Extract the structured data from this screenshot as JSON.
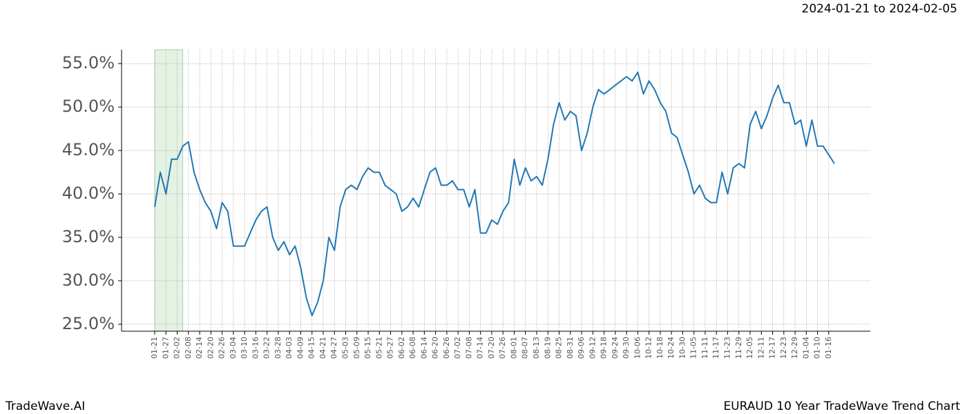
{
  "chart_data": {
    "type": "line",
    "title": "2024-01-21 to 2024-02-05",
    "footer_left": "TradeWave.AI",
    "footer_right": "EURAUD 10 Year TradeWave Trend Chart",
    "color": "#1f77b4",
    "grid": true,
    "shade": {
      "from": "01-21",
      "to": "02-05",
      "color": "#e4f2e4"
    },
    "x": [
      "01-21",
      "01-24",
      "01-27",
      "01-30",
      "02-02",
      "02-05",
      "02-08",
      "02-11",
      "02-14",
      "02-17",
      "02-20",
      "02-23",
      "02-26",
      "03-01",
      "03-04",
      "03-07",
      "03-10",
      "03-13",
      "03-16",
      "03-19",
      "03-22",
      "03-25",
      "03-28",
      "03-31",
      "04-03",
      "04-06",
      "04-09",
      "04-12",
      "04-15",
      "04-18",
      "04-21",
      "04-24",
      "04-27",
      "04-30",
      "05-03",
      "05-06",
      "05-09",
      "05-12",
      "05-15",
      "05-18",
      "05-21",
      "05-24",
      "05-27",
      "05-30",
      "06-02",
      "06-05",
      "06-08",
      "06-11",
      "06-14",
      "06-17",
      "06-20",
      "06-23",
      "06-26",
      "06-29",
      "07-02",
      "07-05",
      "07-08",
      "07-11",
      "07-14",
      "07-17",
      "07-20",
      "07-23",
      "07-26",
      "07-29",
      "08-01",
      "08-04",
      "08-07",
      "08-10",
      "08-13",
      "08-16",
      "08-19",
      "08-22",
      "08-25",
      "08-28",
      "08-31",
      "09-03",
      "09-06",
      "09-09",
      "09-12",
      "09-15",
      "09-18",
      "09-21",
      "09-24",
      "09-27",
      "09-30",
      "10-03",
      "10-06",
      "10-09",
      "10-12",
      "10-15",
      "10-18",
      "10-21",
      "10-24",
      "10-27",
      "10-30",
      "11-02",
      "11-05",
      "11-08",
      "11-11",
      "11-14",
      "11-17",
      "11-20",
      "11-23",
      "11-26",
      "11-29",
      "12-02",
      "12-05",
      "12-08",
      "12-11",
      "12-14",
      "12-17",
      "12-20",
      "12-23",
      "12-26",
      "12-29",
      "01-01",
      "01-04",
      "01-07",
      "01-10",
      "01-13",
      "01-16",
      "01-19"
    ],
    "values": [
      38.5,
      42.5,
      40,
      44,
      44,
      45.5,
      46,
      42.5,
      40.5,
      39,
      38,
      36,
      39,
      38,
      34,
      34,
      34,
      35.5,
      37,
      38,
      38.5,
      35,
      33.5,
      34.5,
      33,
      34,
      31.5,
      28,
      26,
      27.5,
      30,
      35,
      33.5,
      38.5,
      40.5,
      41,
      40.5,
      42,
      43,
      42.5,
      42.5,
      41,
      40.5,
      40,
      38,
      38.5,
      39.5,
      38.5,
      40.5,
      42.5,
      43,
      41,
      41,
      41.5,
      40.5,
      40.5,
      38.5,
      40.5,
      35.5,
      35.5,
      37,
      36.5,
      38,
      39,
      44,
      41,
      43,
      41.5,
      42,
      41,
      44,
      48,
      50.5,
      48.5,
      49.5,
      49,
      45,
      47,
      50,
      52,
      51.5,
      52,
      52.5,
      53,
      53.5,
      53,
      54,
      51.5,
      53,
      52,
      50.5,
      49.5,
      47,
      46.5,
      44.5,
      42.5,
      40,
      41,
      39.5,
      39,
      39,
      42.5,
      40,
      43,
      43.5,
      43,
      48,
      49.5,
      47.5,
      49,
      51,
      52.5,
      50.5,
      50.5,
      48,
      48.5,
      45.5,
      48.5,
      45.5,
      45.5,
      44.5,
      43.5
    ],
    "xticks": [
      "01-21",
      "01-27",
      "02-02",
      "02-08",
      "02-14",
      "02-20",
      "02-26",
      "03-04",
      "03-10",
      "03-16",
      "03-22",
      "03-28",
      "04-03",
      "04-09",
      "04-15",
      "04-21",
      "04-27",
      "05-03",
      "05-09",
      "05-15",
      "05-21",
      "05-27",
      "06-02",
      "06-08",
      "06-14",
      "06-20",
      "06-26",
      "07-02",
      "07-08",
      "07-14",
      "07-20",
      "07-26",
      "08-01",
      "08-07",
      "08-13",
      "08-19",
      "08-25",
      "08-31",
      "09-06",
      "09-12",
      "09-18",
      "09-24",
      "09-30",
      "10-06",
      "10-12",
      "10-18",
      "10-24",
      "10-30",
      "11-05",
      "11-11",
      "11-17",
      "11-23",
      "11-29",
      "12-05",
      "12-11",
      "12-17",
      "12-23",
      "12-29",
      "01-04",
      "01-10",
      "01-16"
    ],
    "ylim": [
      24.2,
      56.6
    ],
    "yticks": [
      {
        "value": 25,
        "label": "25.0%"
      },
      {
        "value": 30,
        "label": "30.0%"
      },
      {
        "value": 35,
        "label": "35.0%"
      },
      {
        "value": 40,
        "label": "40.0%"
      },
      {
        "value": 45,
        "label": "45.0%"
      },
      {
        "value": 50,
        "label": "50.0%"
      },
      {
        "value": 55,
        "label": "55.0%"
      }
    ]
  }
}
